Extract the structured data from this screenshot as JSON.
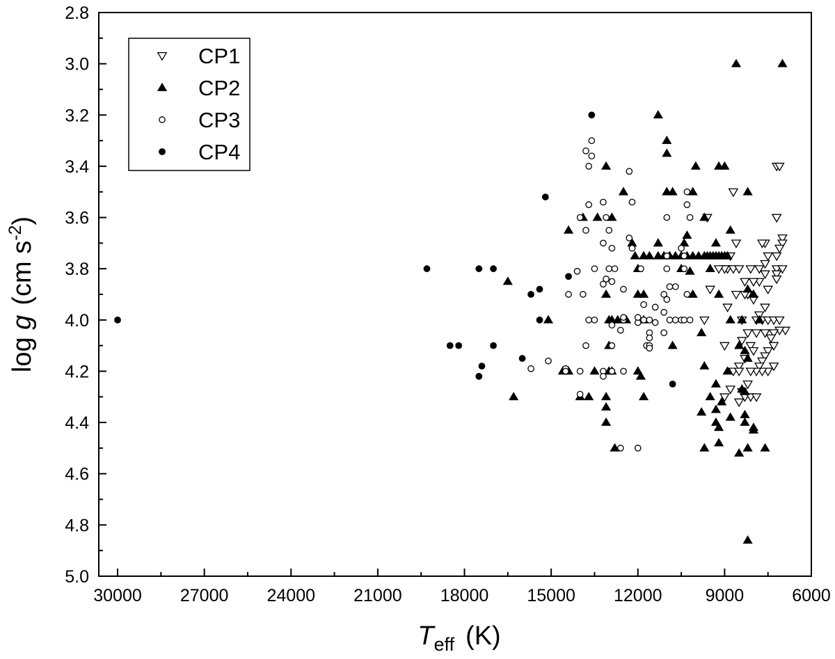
{
  "chart_data": {
    "type": "scatter",
    "xlabel": {
      "main": "T",
      "sub": "eff",
      "unit": "(K)"
    },
    "ylabel": {
      "pre": "log ",
      "italic": "g",
      "unit": "(cm s",
      "sup": "-2",
      "close": ")"
    },
    "xlim": [
      30650,
      6000
    ],
    "ylim": [
      5.0,
      2.8
    ],
    "x_ticks": [
      30000,
      27000,
      24000,
      21000,
      18000,
      15000,
      12000,
      9000,
      6000
    ],
    "y_ticks": [
      2.8,
      3.0,
      3.2,
      3.4,
      3.6,
      3.8,
      4.0,
      4.2,
      4.4,
      4.6,
      4.8,
      5.0
    ],
    "x_tick_labels": [
      "30000",
      "27000",
      "24000",
      "21000",
      "18000",
      "15000",
      "12000",
      "9000",
      "6000"
    ],
    "y_tick_labels": [
      "2.8",
      "3.0",
      "3.2",
      "3.4",
      "3.6",
      "3.8",
      "4.0",
      "4.2",
      "4.4",
      "4.6",
      "4.8",
      "5.0"
    ],
    "grid": false,
    "legend_position": "top-left",
    "series": [
      {
        "name": "CP1",
        "marker": "triangle-down-open",
        "points": [
          [
            7200,
            3.4
          ],
          [
            7100,
            3.4
          ],
          [
            7200,
            3.6
          ],
          [
            7200,
            3.6
          ],
          [
            7000,
            3.68
          ],
          [
            7000,
            3.7
          ],
          [
            7100,
            3.72
          ],
          [
            7200,
            3.75
          ],
          [
            7200,
            3.8
          ],
          [
            7000,
            3.8
          ],
          [
            7200,
            3.82
          ],
          [
            7200,
            3.84
          ],
          [
            7600,
            3.7
          ],
          [
            7700,
            3.7
          ],
          [
            7500,
            3.75
          ],
          [
            7600,
            3.78
          ],
          [
            7800,
            3.8
          ],
          [
            7600,
            3.82
          ],
          [
            7800,
            3.85
          ],
          [
            7500,
            3.88
          ],
          [
            8100,
            3.8
          ],
          [
            8000,
            3.85
          ],
          [
            8200,
            3.9
          ],
          [
            8000,
            3.92
          ],
          [
            7600,
            3.95
          ],
          [
            7800,
            3.98
          ],
          [
            7900,
            4.0
          ],
          [
            7700,
            4.0
          ],
          [
            7500,
            4.0
          ],
          [
            7300,
            4.0
          ],
          [
            7100,
            4.0
          ],
          [
            6900,
            4.04
          ],
          [
            7100,
            4.04
          ],
          [
            7300,
            4.05
          ],
          [
            7600,
            4.05
          ],
          [
            7400,
            4.07
          ],
          [
            7300,
            4.1
          ],
          [
            7500,
            4.12
          ],
          [
            7600,
            4.14
          ],
          [
            7700,
            4.16
          ],
          [
            7800,
            4.18
          ],
          [
            7300,
            4.18
          ],
          [
            7500,
            4.2
          ],
          [
            7700,
            4.2
          ],
          [
            7900,
            4.2
          ],
          [
            8100,
            4.2
          ],
          [
            8200,
            4.25
          ],
          [
            8400,
            4.28
          ],
          [
            8300,
            4.3
          ],
          [
            8100,
            4.3
          ],
          [
            7900,
            4.3
          ],
          [
            8500,
            4.32
          ],
          [
            8700,
            3.5
          ],
          [
            8900,
            3.8
          ],
          [
            8700,
            3.8
          ],
          [
            8500,
            3.8
          ],
          [
            8300,
            3.9
          ],
          [
            8400,
            4.0
          ],
          [
            8200,
            4.05
          ],
          [
            8400,
            4.08
          ],
          [
            8100,
            4.1
          ],
          [
            8000,
            4.12
          ],
          [
            8300,
            4.15
          ],
          [
            8500,
            4.18
          ],
          [
            8700,
            4.2
          ],
          [
            8800,
            4.27
          ],
          [
            9000,
            4.3
          ],
          [
            8500,
            4.2
          ],
          [
            8800,
            3.75
          ],
          [
            8600,
            3.7
          ],
          [
            9000,
            3.8
          ],
          [
            9200,
            3.8
          ],
          [
            9600,
            3.6
          ],
          [
            9500,
            3.88
          ],
          [
            9700,
            4.0
          ],
          [
            9000,
            4.1
          ],
          [
            8900,
            3.95
          ],
          [
            8600,
            3.9
          ],
          [
            8300,
            3.85
          ],
          [
            7900,
            4.05
          ]
        ]
      },
      {
        "name": "CP2",
        "marker": "triangle-up-filled",
        "points": [
          [
            8600,
            3.0
          ],
          [
            7000,
            3.0
          ],
          [
            11300,
            3.2
          ],
          [
            11000,
            3.3
          ],
          [
            11000,
            3.35
          ],
          [
            13100,
            3.4
          ],
          [
            10000,
            3.4
          ],
          [
            9200,
            3.4
          ],
          [
            9000,
            3.4
          ],
          [
            12500,
            3.5
          ],
          [
            11000,
            3.5
          ],
          [
            10800,
            3.5
          ],
          [
            10100,
            3.5
          ],
          [
            8200,
            3.5
          ],
          [
            13900,
            3.6
          ],
          [
            13400,
            3.6
          ],
          [
            12900,
            3.6
          ],
          [
            9700,
            3.6
          ],
          [
            14400,
            3.65
          ],
          [
            8800,
            3.65
          ],
          [
            10300,
            3.67
          ],
          [
            12200,
            3.7
          ],
          [
            11300,
            3.7
          ],
          [
            10400,
            3.7
          ],
          [
            9300,
            3.7
          ],
          [
            12100,
            3.75
          ],
          [
            11800,
            3.75
          ],
          [
            11600,
            3.75
          ],
          [
            11300,
            3.75
          ],
          [
            11100,
            3.75
          ],
          [
            10900,
            3.75
          ],
          [
            10700,
            3.75
          ],
          [
            10500,
            3.75
          ],
          [
            10300,
            3.75
          ],
          [
            10100,
            3.75
          ],
          [
            9900,
            3.75
          ],
          [
            9700,
            3.75
          ],
          [
            9600,
            3.75
          ],
          [
            9500,
            3.75
          ],
          [
            9400,
            3.75
          ],
          [
            9300,
            3.75
          ],
          [
            9200,
            3.75
          ],
          [
            9100,
            3.75
          ],
          [
            9000,
            3.75
          ],
          [
            8900,
            3.75
          ],
          [
            12000,
            3.8
          ],
          [
            10500,
            3.8
          ],
          [
            9500,
            3.8
          ],
          [
            10200,
            3.81
          ],
          [
            16500,
            3.85
          ],
          [
            8200,
            3.88
          ],
          [
            13100,
            3.9
          ],
          [
            12000,
            3.9
          ],
          [
            11800,
            3.9
          ],
          [
            10100,
            3.9
          ],
          [
            9200,
            3.9
          ],
          [
            8000,
            3.9
          ],
          [
            15100,
            4.0
          ],
          [
            13000,
            4.0
          ],
          [
            12900,
            4.0
          ],
          [
            12700,
            4.0
          ],
          [
            12400,
            4.0
          ],
          [
            11800,
            4.0
          ],
          [
            8800,
            4.0
          ],
          [
            8400,
            4.0
          ],
          [
            7800,
            4.0
          ],
          [
            9800,
            4.05
          ],
          [
            10800,
            4.1
          ],
          [
            13000,
            4.1
          ],
          [
            8500,
            4.1
          ],
          [
            8300,
            4.12
          ],
          [
            8200,
            4.15
          ],
          [
            14600,
            4.2
          ],
          [
            14400,
            4.2
          ],
          [
            13500,
            4.2
          ],
          [
            13000,
            4.2
          ],
          [
            12900,
            4.2
          ],
          [
            12000,
            4.2
          ],
          [
            9700,
            4.18
          ],
          [
            8900,
            4.2
          ],
          [
            11900,
            4.22
          ],
          [
            9300,
            4.25
          ],
          [
            8400,
            4.27
          ],
          [
            8300,
            4.28
          ],
          [
            16300,
            4.3
          ],
          [
            14000,
            4.3
          ],
          [
            13700,
            4.3
          ],
          [
            13100,
            4.3
          ],
          [
            11800,
            4.3
          ],
          [
            9500,
            4.3
          ],
          [
            9100,
            4.32
          ],
          [
            13100,
            4.34
          ],
          [
            9300,
            4.35
          ],
          [
            9800,
            4.36
          ],
          [
            8300,
            4.37
          ],
          [
            8800,
            4.38
          ],
          [
            13100,
            4.4
          ],
          [
            9300,
            4.4
          ],
          [
            9200,
            4.42
          ],
          [
            8300,
            4.4
          ],
          [
            8000,
            4.42
          ],
          [
            8000,
            4.43
          ],
          [
            12800,
            4.5
          ],
          [
            9700,
            4.5
          ],
          [
            9200,
            4.48
          ],
          [
            8200,
            4.5
          ],
          [
            7600,
            4.5
          ],
          [
            8500,
            4.52
          ],
          [
            8200,
            4.86
          ]
        ]
      },
      {
        "name": "CP3",
        "marker": "circle-open",
        "points": [
          [
            13600,
            3.3
          ],
          [
            13800,
            3.34
          ],
          [
            13600,
            3.36
          ],
          [
            13700,
            3.4
          ],
          [
            12300,
            3.42
          ],
          [
            10300,
            3.5
          ],
          [
            13200,
            3.54
          ],
          [
            12200,
            3.54
          ],
          [
            13700,
            3.55
          ],
          [
            10300,
            3.55
          ],
          [
            14000,
            3.6
          ],
          [
            13100,
            3.6
          ],
          [
            11000,
            3.6
          ],
          [
            10200,
            3.6
          ],
          [
            13800,
            3.65
          ],
          [
            13000,
            3.65
          ],
          [
            12300,
            3.68
          ],
          [
            13200,
            3.7
          ],
          [
            12900,
            3.72
          ],
          [
            12200,
            3.72
          ],
          [
            11000,
            3.75
          ],
          [
            10500,
            3.72
          ],
          [
            10400,
            3.75
          ],
          [
            13500,
            3.8
          ],
          [
            13000,
            3.8
          ],
          [
            12800,
            3.8
          ],
          [
            11900,
            3.8
          ],
          [
            11000,
            3.8
          ],
          [
            10400,
            3.8
          ],
          [
            13100,
            3.84
          ],
          [
            12900,
            3.85
          ],
          [
            13200,
            3.86
          ],
          [
            10900,
            3.87
          ],
          [
            10700,
            3.87
          ],
          [
            14100,
            3.81
          ],
          [
            14400,
            3.9
          ],
          [
            13900,
            3.9
          ],
          [
            12500,
            3.88
          ],
          [
            11100,
            3.9
          ],
          [
            10300,
            3.9
          ],
          [
            11000,
            3.92
          ],
          [
            11800,
            3.94
          ],
          [
            11400,
            3.95
          ],
          [
            11100,
            3.97
          ],
          [
            11600,
            4.0
          ],
          [
            12000,
            4.01
          ],
          [
            11800,
            4.0
          ],
          [
            11400,
            4.01
          ],
          [
            10900,
            4.0
          ],
          [
            10700,
            4.0
          ],
          [
            10500,
            4.0
          ],
          [
            10400,
            4.0
          ],
          [
            10200,
            4.0
          ],
          [
            13700,
            4.0
          ],
          [
            13500,
            4.0
          ],
          [
            12500,
            4.0
          ],
          [
            12900,
            4.02
          ],
          [
            12600,
            4.04
          ],
          [
            11600,
            4.05
          ],
          [
            11600,
            4.07
          ],
          [
            11100,
            4.05
          ],
          [
            11700,
            4.1
          ],
          [
            11600,
            4.1
          ],
          [
            11600,
            4.11
          ],
          [
            13800,
            4.1
          ],
          [
            12900,
            4.1
          ],
          [
            15100,
            4.16
          ],
          [
            15700,
            4.19
          ],
          [
            14500,
            4.19
          ],
          [
            14500,
            4.2
          ],
          [
            14000,
            4.2
          ],
          [
            13200,
            4.2
          ],
          [
            12900,
            4.2
          ],
          [
            12500,
            4.2
          ],
          [
            13200,
            4.22
          ],
          [
            14000,
            4.29
          ],
          [
            12600,
            4.5
          ],
          [
            12000,
            4.5
          ],
          [
            12500,
            3.99
          ],
          [
            12000,
            3.99
          ]
        ]
      },
      {
        "name": "CP4",
        "marker": "circle-filled",
        "points": [
          [
            30000,
            4.0
          ],
          [
            19300,
            3.8
          ],
          [
            17500,
            3.8
          ],
          [
            17000,
            3.8
          ],
          [
            13600,
            3.2
          ],
          [
            15200,
            3.52
          ],
          [
            14400,
            3.83
          ],
          [
            15700,
            3.9
          ],
          [
            15400,
            3.88
          ],
          [
            15400,
            4.0
          ],
          [
            18500,
            4.1
          ],
          [
            18200,
            4.1
          ],
          [
            17000,
            4.1
          ],
          [
            16000,
            4.15
          ],
          [
            17400,
            4.18
          ],
          [
            17500,
            4.22
          ],
          [
            10800,
            4.25
          ]
        ]
      }
    ]
  }
}
